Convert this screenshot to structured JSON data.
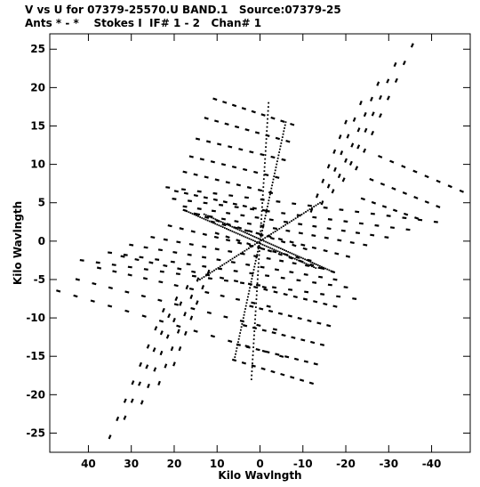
{
  "header": {
    "line1": "V vs U for 07379-25570.U BAND.1   Source:07379-25",
    "line2": "Ants * - *    Stokes I  IF# 1 - 2   Chan# 1"
  },
  "chart_data": {
    "type": "scatter",
    "xlabel": "Kilo Wavlngth",
    "ylabel": "Kilo Wavlngth",
    "xlim": [
      49,
      -49
    ],
    "ylim": [
      -27.5,
      27
    ],
    "xticks": [
      40,
      30,
      20,
      10,
      0,
      -10,
      -20,
      -30,
      -40
    ],
    "yticks": [
      25,
      20,
      15,
      10,
      5,
      0,
      -5,
      -10,
      -15,
      -20,
      -25
    ],
    "xtick_labels": [
      "40",
      "30",
      "20",
      "10",
      "0",
      "-10",
      "-20",
      "-30",
      "-40"
    ],
    "ytick_labels": [
      "25",
      "20",
      "15",
      "10",
      "5",
      "0",
      "-5",
      "-10",
      "-15",
      "-20",
      "-25"
    ],
    "marker_color": "#000000",
    "series": [
      {
        "tracks": [
          {
            "from": [
              10.5,
              18.5
            ],
            "to": [
              -7.5,
              15.2
            ],
            "dashes": 9
          },
          {
            "from": [
              12.5,
              16.0
            ],
            "to": [
              -6.5,
              13.0
            ],
            "dashes": 9
          },
          {
            "from": [
              14.5,
              13.3
            ],
            "to": [
              -5.5,
              10.6
            ],
            "dashes": 9
          },
          {
            "from": [
              16.0,
              11.0
            ],
            "to": [
              -4.0,
              8.3
            ],
            "dashes": 9
          },
          {
            "from": [
              17.5,
              9.0
            ],
            "to": [
              -2.5,
              6.3
            ],
            "dashes": 9
          },
          {
            "from": [
              19.5,
              6.5
            ],
            "to": [
              -1.0,
              4.0
            ],
            "dashes": 10
          },
          {
            "from": [
              17.5,
              4.0
            ],
            "to": [
              -10.5,
              -1.0
            ],
            "dashes": 12
          },
          {
            "from": [
              21.0,
              2.0
            ],
            "to": [
              -11.5,
              -2.5
            ],
            "dashes": 13
          },
          {
            "from": [
              25.0,
              0.5
            ],
            "to": [
              -14.0,
              -3.5
            ],
            "dashes": 14
          },
          {
            "from": [
              30.0,
              -0.5
            ],
            "to": [
              -17.5,
              -5.0
            ],
            "dashes": 15
          },
          {
            "from": [
              35.0,
              -1.5
            ],
            "to": [
              -20.0,
              -6.0
            ],
            "dashes": 16
          },
          {
            "from": [
              41.5,
              -2.5
            ],
            "to": [
              -22.0,
              -7.5
            ],
            "dashes": 18
          },
          {
            "from": [
              47.0,
              -6.5
            ],
            "to": [
              -5.0,
              -15.0
            ],
            "dashes": 14
          },
          {
            "from": [
              42.5,
              -5.0
            ],
            "to": [
              -3.5,
              -11.5
            ],
            "dashes": 13
          },
          {
            "from": [
              37.5,
              -3.5
            ],
            "to": [
              -2.0,
              -8.5
            ],
            "dashes": 12
          },
          {
            "from": [
              32.0,
              -2.0
            ],
            "to": [
              -1.0,
              -6.0
            ],
            "dashes": 11
          },
          {
            "from": [
              -12.0,
              -18.5
            ],
            "to": [
              6.0,
              -15.5
            ],
            "dashes": 9
          },
          {
            "from": [
              -13.0,
              -16.0
            ],
            "to": [
              5.0,
              -13.5
            ],
            "dashes": 9
          },
          {
            "from": [
              -14.5,
              -13.5
            ],
            "to": [
              3.5,
              -11.0
            ],
            "dashes": 9
          },
          {
            "from": [
              -16.0,
              -11.0
            ],
            "to": [
              2.0,
              -8.5
            ],
            "dashes": 9
          },
          {
            "from": [
              -17.5,
              -8.5
            ],
            "to": [
              1.0,
              -6.0
            ],
            "dashes": 9
          },
          {
            "from": [
              -17.0,
              -4.0
            ],
            "to": [
              10.0,
              1.0
            ],
            "dashes": 12
          },
          {
            "from": [
              -20.5,
              -2.0
            ],
            "to": [
              11.0,
              2.5
            ],
            "dashes": 13
          },
          {
            "from": [
              -24.5,
              -0.5
            ],
            "to": [
              14.5,
              3.5
            ],
            "dashes": 14
          },
          {
            "from": [
              -29.5,
              0.5
            ],
            "to": [
              17.5,
              4.5
            ],
            "dashes": 15
          },
          {
            "from": [
              -34.5,
              1.5
            ],
            "to": [
              20.0,
              5.5
            ],
            "dashes": 16
          },
          {
            "from": [
              -41.0,
              2.5
            ],
            "to": [
              21.5,
              7.0
            ],
            "dashes": 18
          },
          {
            "from": [
              -47.0,
              6.5
            ],
            "to": [
              -28.0,
              11.0
            ],
            "dashes": 8
          },
          {
            "from": [
              -41.5,
              4.5
            ],
            "to": [
              -26.0,
              8.0
            ],
            "dashes": 7
          },
          {
            "from": [
              -36.5,
              3.0
            ],
            "to": [
              -24.0,
              5.5
            ],
            "dashes": 6
          },
          {
            "from": [
              35.0,
              -25.5
            ],
            "to": [
              22.5,
              -9.0
            ],
            "dashes": 8
          },
          {
            "from": [
              31.5,
              -23.0
            ],
            "to": [
              19.5,
              -7.5
            ],
            "dashes": 8
          },
          {
            "from": [
              27.5,
              -21.0
            ],
            "to": [
              17.0,
              -6.0
            ],
            "dashes": 8
          },
          {
            "from": [
              23.5,
              -18.5
            ],
            "to": [
              14.5,
              -5.0
            ],
            "dashes": 7
          },
          {
            "from": [
              20.0,
              -16.0
            ],
            "to": [
              12.0,
              -4.0
            ],
            "dashes": 7
          },
          {
            "from": [
              -35.5,
              25.5
            ],
            "to": [
              -22.5,
              9.5
            ],
            "dashes": 8
          },
          {
            "from": [
              -31.5,
              23.0
            ],
            "to": [
              -19.5,
              8.0
            ],
            "dashes": 8
          },
          {
            "from": [
              -27.5,
              20.5
            ],
            "to": [
              -17.0,
              6.5
            ],
            "dashes": 8
          },
          {
            "from": [
              -23.5,
              18.0
            ],
            "to": [
              -14.5,
              5.0
            ],
            "dashes": 7
          },
          {
            "from": [
              -20.0,
              15.5
            ],
            "to": [
              -12.0,
              4.0
            ],
            "dashes": 7
          }
        ],
        "dense_tracks": [
          {
            "from": [
              17.5,
              4.0
            ],
            "to": [
              -13.0,
              -3.5
            ],
            "points": 70
          },
          {
            "from": [
              -17.0,
              -4.0
            ],
            "to": [
              13.0,
              3.5
            ],
            "points": 70
          },
          {
            "from": [
              6.0,
              -15.5
            ],
            "to": [
              -6.0,
              15.5
            ],
            "points": 80
          },
          {
            "from": [
              -2.0,
              18.0
            ],
            "to": [
              2.0,
              -18.0
            ],
            "points": 70
          },
          {
            "from": [
              14.0,
              -5.0
            ],
            "to": [
              -14.0,
              5.0
            ],
            "points": 60
          }
        ]
      }
    ]
  }
}
